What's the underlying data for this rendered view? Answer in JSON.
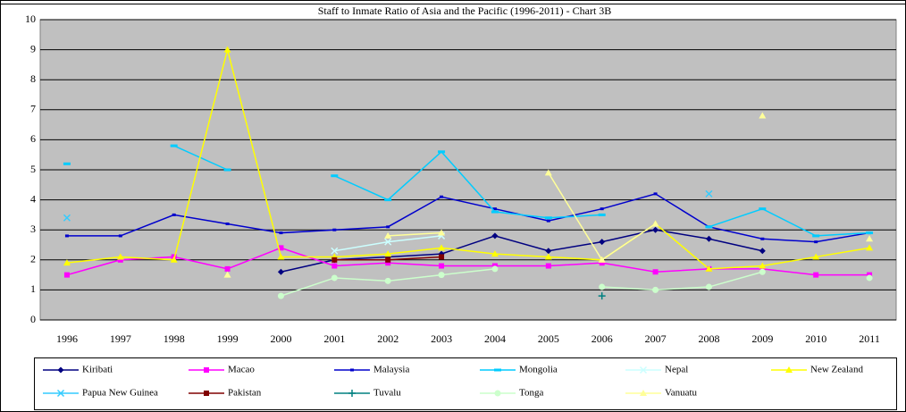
{
  "chart_data": {
    "type": "line",
    "title": "Staff to Inmate Ratio of Asia and the Pacific (1996-2011) - Chart 3B",
    "categories": [
      "1996",
      "1997",
      "1998",
      "1999",
      "2000",
      "2001",
      "2002",
      "2003",
      "2004",
      "2005",
      "2006",
      "2007",
      "2008",
      "2009",
      "2010",
      "2011"
    ],
    "ylim": [
      0,
      10
    ],
    "yticks": [
      0,
      1,
      2,
      3,
      4,
      5,
      6,
      7,
      8,
      9,
      10
    ],
    "grid": true,
    "series": [
      {
        "name": "Kiribati",
        "color": "#000080",
        "marker": "diamond",
        "values": [
          null,
          null,
          null,
          null,
          1.6,
          2.0,
          2.1,
          2.2,
          2.8,
          2.3,
          2.6,
          3.0,
          2.7,
          2.3,
          null,
          null
        ]
      },
      {
        "name": "Macao",
        "color": "#ff00ff",
        "marker": "square",
        "values": [
          1.5,
          2.0,
          2.1,
          1.7,
          2.4,
          1.8,
          1.9,
          1.8,
          1.8,
          1.8,
          1.9,
          1.6,
          1.7,
          1.7,
          1.5,
          1.5
        ]
      },
      {
        "name": "Malaysia",
        "color": "#0000cc",
        "marker": "dash",
        "values": [
          2.8,
          2.8,
          3.5,
          3.2,
          2.9,
          3.0,
          3.1,
          4.1,
          3.7,
          3.3,
          3.7,
          4.2,
          3.1,
          2.7,
          2.6,
          2.9
        ]
      },
      {
        "name": "Mongolia",
        "color": "#00ccff",
        "marker": "bar",
        "values": [
          5.2,
          null,
          5.8,
          5.0,
          null,
          4.8,
          4.0,
          5.6,
          3.6,
          3.4,
          3.5,
          null,
          3.1,
          3.7,
          2.8,
          2.9
        ]
      },
      {
        "name": "Nepal",
        "color": "#ccffff",
        "marker": "x",
        "values": [
          null,
          null,
          null,
          null,
          null,
          2.3,
          2.6,
          2.8,
          null,
          null,
          null,
          null,
          null,
          null,
          null,
          null
        ]
      },
      {
        "name": "New Zealand",
        "color": "#ffff00",
        "marker": "triangle",
        "values": [
          1.9,
          2.1,
          2.0,
          9.0,
          2.1,
          2.1,
          2.2,
          2.4,
          2.2,
          2.1,
          2.0,
          3.2,
          1.7,
          1.8,
          2.1,
          2.4
        ]
      },
      {
        "name": "Papua New Guinea",
        "color": "#33ccff",
        "marker": "x",
        "values": [
          3.4,
          null,
          null,
          null,
          null,
          null,
          null,
          null,
          null,
          null,
          null,
          null,
          4.2,
          null,
          null,
          null
        ]
      },
      {
        "name": "Pakistan",
        "color": "#800000",
        "marker": "square",
        "values": [
          null,
          null,
          null,
          null,
          null,
          2.0,
          2.0,
          2.1,
          null,
          null,
          null,
          null,
          null,
          null,
          null,
          null
        ]
      },
      {
        "name": "Tuvalu",
        "color": "#008080",
        "marker": "plus",
        "values": [
          null,
          null,
          null,
          null,
          null,
          null,
          null,
          null,
          null,
          null,
          0.8,
          null,
          null,
          null,
          null,
          null
        ]
      },
      {
        "name": "Tonga",
        "color": "#ccffcc",
        "marker": "circle",
        "values": [
          null,
          null,
          null,
          null,
          0.8,
          1.4,
          1.3,
          1.5,
          1.7,
          null,
          1.1,
          1.0,
          1.1,
          1.6,
          null,
          1.4
        ]
      },
      {
        "name": "Vanuatu",
        "color": "#ffff99",
        "marker": "triangle",
        "values": [
          null,
          null,
          null,
          1.5,
          null,
          null,
          2.8,
          2.9,
          null,
          4.9,
          2.0,
          3.2,
          null,
          6.8,
          null,
          2.7
        ]
      }
    ]
  }
}
